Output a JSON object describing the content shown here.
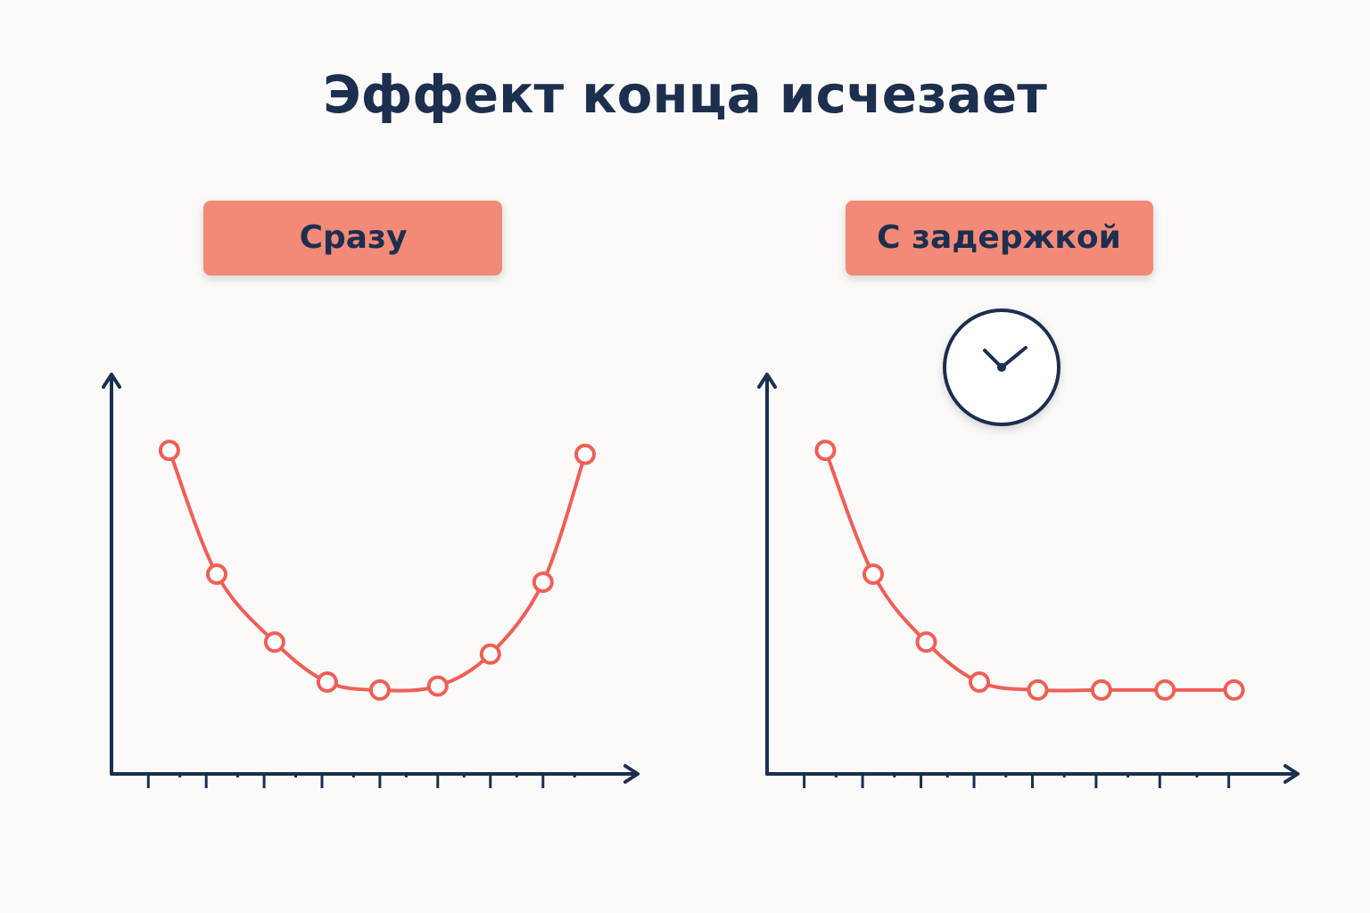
{
  "title": "Эффект конца исчезает",
  "chart_data": [
    {
      "type": "line",
      "title": "Сразу",
      "color": "#ef5f56",
      "x": [
        11,
        20,
        31,
        41,
        51,
        62,
        72,
        82,
        90
      ],
      "values": [
        81,
        50,
        33,
        23,
        21,
        22,
        30,
        48,
        80
      ],
      "xlim": [
        0,
        100
      ],
      "ylim": [
        0,
        100
      ],
      "xticks": [
        7,
        13,
        18,
        24,
        29,
        35,
        40,
        46,
        51,
        56,
        62,
        67,
        72,
        77,
        82,
        88
      ]
    },
    {
      "type": "line",
      "title": "С задержкой",
      "color": "#ef5f56",
      "x": [
        11,
        20,
        30,
        40,
        51,
        63,
        75,
        88
      ],
      "values": [
        81,
        50,
        33,
        23,
        21,
        21,
        21,
        21
      ],
      "xlim": [
        0,
        100
      ],
      "ylim": [
        0,
        100
      ],
      "xticks": [
        7,
        13,
        18,
        24,
        29,
        34,
        39,
        45,
        50,
        56,
        62,
        68,
        74,
        81,
        87
      ]
    }
  ]
}
